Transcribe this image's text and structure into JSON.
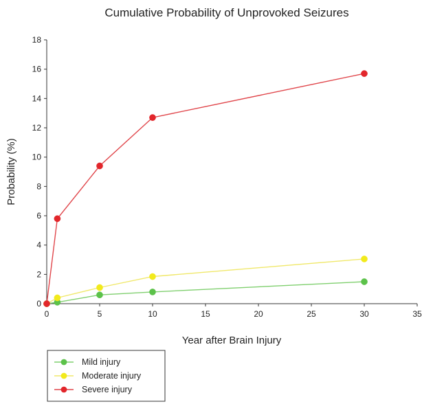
{
  "chart_data": {
    "type": "line",
    "title": "Cumulative Probability of Unprovoked Seizures",
    "xlabel": "Year after Brain Injury",
    "ylabel": "Probability (%)",
    "xlim": [
      0,
      35
    ],
    "ylim": [
      0,
      18
    ],
    "xticks": [
      0,
      5,
      10,
      15,
      20,
      25,
      30,
      35
    ],
    "yticks": [
      0,
      2,
      4,
      6,
      8,
      10,
      12,
      14,
      16,
      18
    ],
    "grid": false,
    "legend_position": "bottom-left",
    "series": [
      {
        "name": "Mild injury",
        "color": "#5cc24a",
        "line_color": "#7fcf6e",
        "points": [
          [
            0,
            0
          ],
          [
            1,
            0.1
          ],
          [
            5,
            0.6
          ],
          [
            10,
            0.8
          ],
          [
            30,
            1.5
          ]
        ]
      },
      {
        "name": "Moderate injury",
        "color": "#f2ea1c",
        "line_color": "#f0e86a",
        "points": [
          [
            0,
            0
          ],
          [
            1,
            0.4
          ],
          [
            5,
            1.1
          ],
          [
            10,
            1.85
          ],
          [
            30,
            3.05
          ]
        ]
      },
      {
        "name": "Severe injury",
        "color": "#e2262b",
        "line_color": "#e0454a",
        "points": [
          [
            0,
            0
          ],
          [
            1,
            5.8
          ],
          [
            5,
            9.4
          ],
          [
            10,
            12.7
          ],
          [
            30,
            15.7
          ]
        ]
      }
    ]
  }
}
